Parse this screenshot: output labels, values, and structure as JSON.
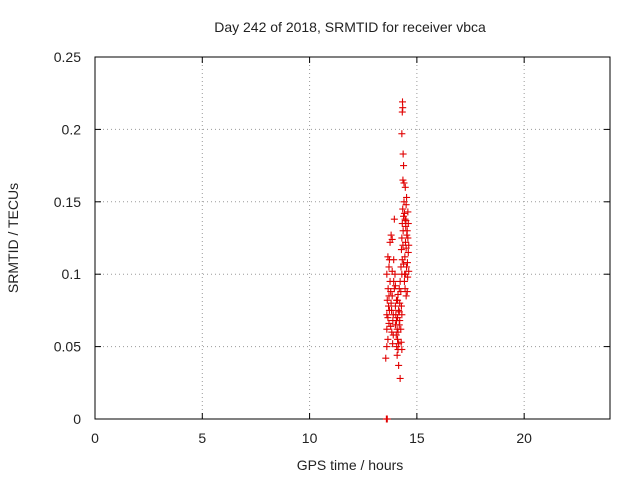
{
  "chart_data": {
    "type": "scatter",
    "title": "Day 242 of 2018, SRMTID for receiver vbca",
    "xlabel": "GPS time / hours",
    "ylabel": "SRMTID / TECUs",
    "xlim": [
      0,
      24
    ],
    "ylim": [
      0,
      0.25
    ],
    "xticks": [
      0,
      5,
      10,
      15,
      20
    ],
    "xtick_labels": [
      "0",
      "5",
      "10",
      "15",
      "20"
    ],
    "yticks": [
      0,
      0.05,
      0.1,
      0.15,
      0.2,
      0.25
    ],
    "ytick_labels": [
      "0",
      "0.05",
      "0.1",
      "0.15",
      "0.2",
      "0.25"
    ],
    "grid": true,
    "marker": "+",
    "color": "#e00000",
    "series": [
      {
        "name": "SRMTID",
        "points": [
          [
            13.58,
            0.0
          ],
          [
            13.6,
            0.0
          ],
          [
            13.62,
            0.0
          ],
          [
            13.55,
            0.042
          ],
          [
            13.6,
            0.05
          ],
          [
            13.65,
            0.055
          ],
          [
            13.6,
            0.062
          ],
          [
            13.7,
            0.066
          ],
          [
            13.65,
            0.07
          ],
          [
            13.6,
            0.072
          ],
          [
            13.72,
            0.075
          ],
          [
            13.68,
            0.078
          ],
          [
            13.62,
            0.082
          ],
          [
            13.7,
            0.085
          ],
          [
            13.66,
            0.09
          ],
          [
            13.75,
            0.095
          ],
          [
            13.6,
            0.1
          ],
          [
            13.7,
            0.105
          ],
          [
            13.65,
            0.112
          ],
          [
            13.72,
            0.11
          ],
          [
            13.78,
            0.088
          ],
          [
            13.8,
            0.08
          ],
          [
            13.85,
            0.085
          ],
          [
            13.82,
            0.075
          ],
          [
            13.9,
            0.072
          ],
          [
            13.88,
            0.068
          ],
          [
            13.78,
            0.064
          ],
          [
            13.83,
            0.06
          ],
          [
            13.9,
            0.058
          ],
          [
            13.87,
            0.052
          ],
          [
            13.95,
            0.09
          ],
          [
            13.92,
            0.095
          ],
          [
            13.98,
            0.1
          ],
          [
            13.85,
            0.102
          ],
          [
            13.92,
            0.11
          ],
          [
            13.75,
            0.122
          ],
          [
            13.8,
            0.127
          ],
          [
            13.85,
            0.124
          ],
          [
            13.95,
            0.138
          ],
          [
            14.0,
            0.078
          ],
          [
            14.02,
            0.072
          ],
          [
            14.05,
            0.068
          ],
          [
            14.0,
            0.065
          ],
          [
            14.08,
            0.062
          ],
          [
            14.04,
            0.058
          ],
          [
            14.1,
            0.055
          ],
          [
            14.06,
            0.05
          ],
          [
            14.12,
            0.048
          ],
          [
            14.08,
            0.044
          ],
          [
            14.15,
            0.052
          ],
          [
            14.12,
            0.06
          ],
          [
            14.18,
            0.065
          ],
          [
            14.1,
            0.07
          ],
          [
            14.15,
            0.075
          ],
          [
            14.2,
            0.08
          ],
          [
            14.05,
            0.082
          ],
          [
            14.12,
            0.086
          ],
          [
            14.18,
            0.09
          ],
          [
            14.0,
            0.092
          ],
          [
            14.22,
            0.095
          ],
          [
            14.25,
            0.088
          ],
          [
            14.28,
            0.078
          ],
          [
            14.3,
            0.072
          ],
          [
            14.2,
            0.068
          ],
          [
            14.25,
            0.062
          ],
          [
            14.15,
            0.037
          ],
          [
            14.22,
            0.028
          ],
          [
            14.3,
            0.048
          ],
          [
            14.27,
            0.053
          ],
          [
            14.1,
            0.082
          ],
          [
            14.18,
            0.074
          ],
          [
            14.3,
            0.1
          ],
          [
            14.26,
            0.105
          ],
          [
            14.32,
            0.11
          ],
          [
            14.28,
            0.117
          ],
          [
            14.35,
            0.12
          ],
          [
            14.3,
            0.125
          ],
          [
            14.36,
            0.13
          ],
          [
            14.32,
            0.135
          ],
          [
            14.38,
            0.14
          ],
          [
            14.34,
            0.145
          ],
          [
            14.4,
            0.15
          ],
          [
            14.42,
            0.142
          ],
          [
            14.45,
            0.138
          ],
          [
            14.48,
            0.133
          ],
          [
            14.5,
            0.148
          ],
          [
            14.52,
            0.153
          ],
          [
            14.46,
            0.16
          ],
          [
            14.4,
            0.163
          ],
          [
            14.35,
            0.165
          ],
          [
            14.38,
            0.175
          ],
          [
            14.36,
            0.183
          ],
          [
            14.3,
            0.197
          ],
          [
            14.32,
            0.212
          ],
          [
            14.34,
            0.215
          ],
          [
            14.33,
            0.219
          ],
          [
            14.42,
            0.095
          ],
          [
            14.45,
            0.09
          ],
          [
            14.5,
            0.085
          ],
          [
            14.55,
            0.088
          ],
          [
            14.48,
            0.1
          ],
          [
            14.52,
            0.105
          ],
          [
            14.56,
            0.108
          ],
          [
            14.6,
            0.115
          ],
          [
            14.62,
            0.12
          ],
          [
            14.58,
            0.125
          ],
          [
            14.55,
            0.13
          ],
          [
            14.5,
            0.118
          ],
          [
            14.44,
            0.112
          ],
          [
            14.47,
            0.122
          ],
          [
            14.53,
            0.127
          ],
          [
            14.58,
            0.143
          ],
          [
            14.6,
            0.135
          ],
          [
            14.57,
            0.098
          ],
          [
            14.62,
            0.102
          ],
          [
            14.49,
            0.137
          ],
          [
            14.43,
            0.1
          ],
          [
            14.38,
            0.107
          ]
        ]
      }
    ]
  }
}
